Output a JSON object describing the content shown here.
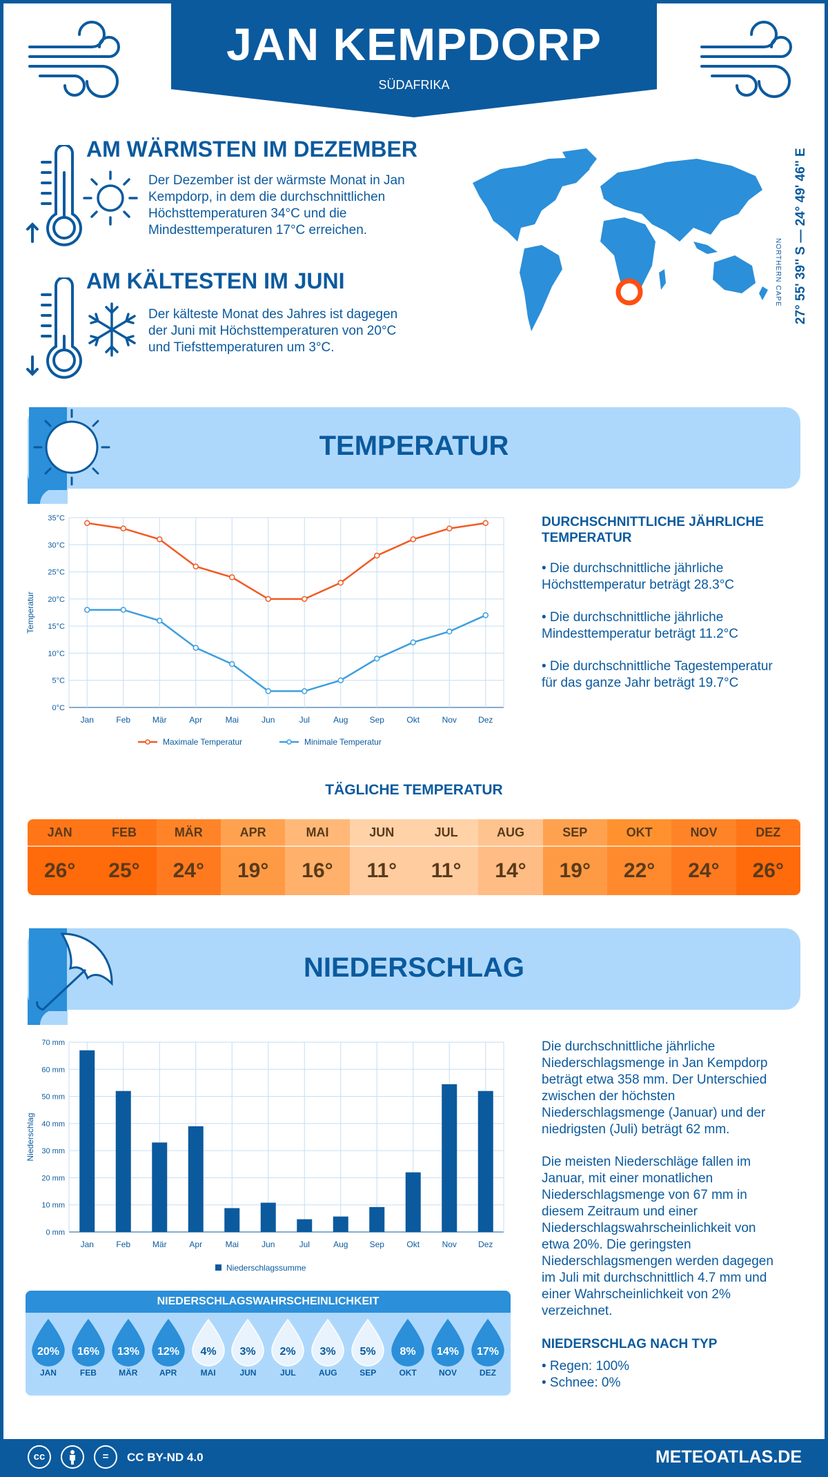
{
  "header": {
    "title": "JAN KEMPDORP",
    "subtitle": "SÜDAFRIKA"
  },
  "warmest": {
    "title": "AM WÄRMSTEN IM DEZEMBER",
    "lines": [
      "Der Dezember ist der wärmste Monat in Jan",
      "Kempdorp, in dem die durchschnittlichen",
      "Höchsttemperaturen 34°C und die",
      "Mindesttemperaturen 17°C erreichen."
    ]
  },
  "coldest": {
    "title": "AM KÄLTESTEN IM JUNI",
    "lines": [
      "Der kälteste Monat des Jahres ist dagegen",
      "der Juni mit Höchsttemperaturen von 20°C",
      "und Tiefsttemperaturen um 3°C."
    ]
  },
  "location": {
    "coordinates": "27° 55' 39'' S — 24° 49' 46'' E",
    "region": "NORTHERN CAPE"
  },
  "temperature_section": {
    "title": "TEMPERATUR",
    "side_title_lines": [
      "DURCHSCHNITTLICHE JÄHRLICHE",
      "TEMPERATUR"
    ],
    "bullets": [
      [
        "• Die durchschnittliche jährliche",
        "Höchsttemperatur beträgt 28.3°C"
      ],
      [
        "• Die durchschnittliche jährliche",
        "Mindesttemperatur beträgt 11.2°C"
      ],
      [
        "• Die durchschnittliche Tagestemperatur",
        "für das ganze Jahr beträgt 19.7°C"
      ]
    ]
  },
  "daily_temperature": {
    "title": "TÄGLICHE TEMPERATUR",
    "months": [
      "JAN",
      "FEB",
      "MÄR",
      "APR",
      "MAI",
      "JUN",
      "JUL",
      "AUG",
      "SEP",
      "OKT",
      "NOV",
      "DEZ"
    ],
    "values": [
      "26°",
      "25°",
      "24°",
      "19°",
      "16°",
      "11°",
      "11°",
      "14°",
      "19°",
      "22°",
      "24°",
      "26°"
    ],
    "colors": [
      "#ff6a0a",
      "#ff6a0a",
      "#ff7a1f",
      "#ff9a44",
      "#ffb06a",
      "#ffcca0",
      "#ffcca0",
      "#ffbc84",
      "#ff9a44",
      "#ff8a2e",
      "#ff7a1f",
      "#ff6a0a"
    ],
    "header_colors": [
      "#ff7618",
      "#ff7618",
      "#ff8428",
      "#ffa24f",
      "#ffb877",
      "#ffd2a8",
      "#ffd2a8",
      "#ffc38f",
      "#ffa24f",
      "#ff922f",
      "#ff8428",
      "#ff7618"
    ]
  },
  "precip_section": {
    "title": "NIEDERSCHLAG",
    "paragraph1": [
      "Die durchschnittliche jährliche",
      "Niederschlagsmenge in Jan Kempdorp",
      "beträgt etwa 358 mm. Der Unterschied",
      "zwischen der höchsten",
      "Niederschlagsmenge (Januar) und der",
      "niedrigsten (Juli) beträgt 62 mm."
    ],
    "paragraph2": [
      "Die meisten Niederschläge fallen im",
      "Januar, mit einer monatlichen",
      "Niederschlagsmenge von 67 mm in",
      "diesem Zeitraum und einer",
      "Niederschlagswahrscheinlichkeit von",
      "etwa 20%. Die geringsten",
      "Niederschlagsmengen werden dagegen",
      "im Juli mit durchschnittlich 4.7 mm und",
      "einer Wahrscheinlichkeit von 2%",
      "verzeichnet."
    ],
    "type_title": "NIEDERSCHLAG NACH TYP",
    "types": [
      "• Regen: 100%",
      "• Schnee: 0%"
    ]
  },
  "probability": {
    "title": "NIEDERSCHLAGSWAHRSCHEINLICHKEIT",
    "months": [
      "JAN",
      "FEB",
      "MÄR",
      "APR",
      "MAI",
      "JUN",
      "JUL",
      "AUG",
      "SEP",
      "OKT",
      "NOV",
      "DEZ"
    ],
    "values": [
      20,
      16,
      13,
      12,
      4,
      3,
      2,
      3,
      5,
      8,
      14,
      17
    ],
    "labels": [
      "20%",
      "16%",
      "13%",
      "12%",
      "4%",
      "3%",
      "2%",
      "3%",
      "5%",
      "8%",
      "14%",
      "17%"
    ]
  },
  "chart_data": [
    {
      "type": "line",
      "categories": [
        "Jan",
        "Feb",
        "Mär",
        "Apr",
        "Mai",
        "Jun",
        "Jul",
        "Aug",
        "Sep",
        "Okt",
        "Nov",
        "Dez"
      ],
      "series": [
        {
          "name": "Maximale Temperatur",
          "values": [
            34,
            33,
            31,
            26,
            24,
            20,
            20,
            23,
            28,
            31,
            33,
            34
          ],
          "color": "#f25a22"
        },
        {
          "name": "Minimale Temperatur",
          "values": [
            18,
            18,
            16,
            11,
            8,
            3,
            3,
            5,
            9,
            12,
            14,
            17
          ],
          "color": "#3d9ee0"
        }
      ],
      "ylabel": "Temperatur",
      "ylim": [
        0,
        35
      ],
      "yticks": [
        "0°C",
        "5°C",
        "10°C",
        "15°C",
        "20°C",
        "25°C",
        "30°C",
        "35°C"
      ],
      "grid": true,
      "legend": "bottom"
    },
    {
      "type": "bar",
      "categories": [
        "Jan",
        "Feb",
        "Mär",
        "Apr",
        "Mai",
        "Jun",
        "Jul",
        "Aug",
        "Sep",
        "Okt",
        "Nov",
        "Dez"
      ],
      "series": [
        {
          "name": "Niederschlagssumme",
          "values": [
            67,
            52,
            33,
            39,
            8.8,
            10.8,
            4.7,
            5.7,
            9.2,
            22,
            54.5,
            52
          ],
          "color": "#0b5a9e"
        }
      ],
      "ylabel": "Niederschlag",
      "ylim": [
        0,
        70
      ],
      "yticks": [
        "0 mm",
        "10 mm",
        "20 mm",
        "30 mm",
        "40 mm",
        "50 mm",
        "60 mm",
        "70 mm"
      ],
      "grid": true,
      "legend": "bottom"
    }
  ],
  "footer": {
    "license": "CC BY-ND 4.0",
    "site": "METEOATLAS.DE"
  }
}
